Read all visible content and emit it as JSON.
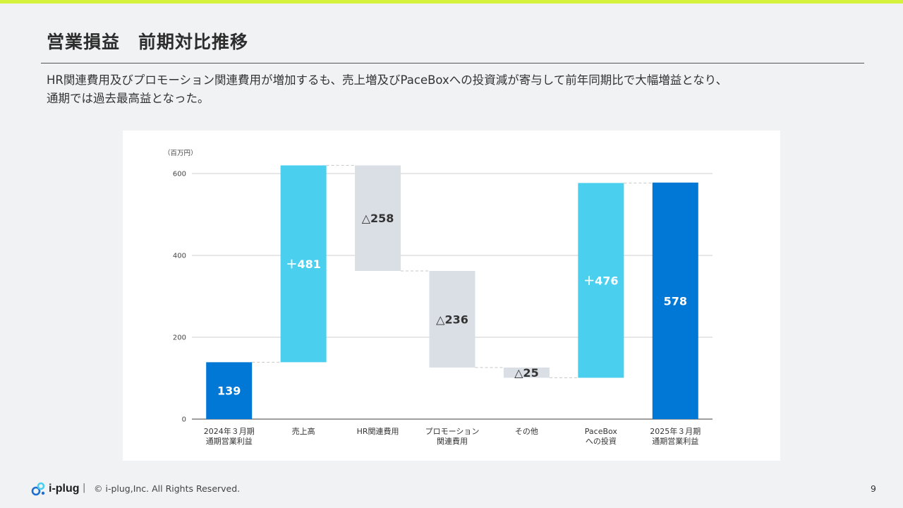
{
  "page": {
    "title": "営業損益　前期対比推移",
    "description_lines": [
      "HR関連費用及びプロモーション関連費用が増加するも、売上増及びPaceBoxへの投資減が寄与して前年同期比で大幅増益となり、",
      "通期では過去最高益となった。"
    ],
    "footer": {
      "logo_text": "i-plug",
      "separator": "|",
      "copyright": "© i-plug,Inc. All Rights Reserved.",
      "page_number": "9"
    }
  },
  "colors": {
    "total": "#0278d6",
    "increase": "#4bcfee",
    "decrease": "#dadfe6",
    "accent_bar": "#d7f23c"
  },
  "chart_data": {
    "type": "waterfall",
    "unit": "（百万円）",
    "ylim": [
      0,
      600
    ],
    "yticks": [
      0,
      200,
      400,
      600
    ],
    "grid": true,
    "steps": [
      {
        "category": [
          "2024年３月期",
          "通期営業利益"
        ],
        "kind": "total",
        "value": 139,
        "label": "139"
      },
      {
        "category": [
          "売上高"
        ],
        "kind": "increase",
        "value": 481,
        "label": "＋481"
      },
      {
        "category": [
          "HR関連費用"
        ],
        "kind": "decrease",
        "value": -258,
        "label": "△258"
      },
      {
        "category": [
          "プロモーション",
          "関連費用"
        ],
        "kind": "decrease",
        "value": -236,
        "label": "△236"
      },
      {
        "category": [
          "その他"
        ],
        "kind": "decrease",
        "value": -25,
        "label": "△25"
      },
      {
        "category": [
          "PaceBox",
          "への投資"
        ],
        "kind": "increase",
        "value": 476,
        "label": "＋476"
      },
      {
        "category": [
          "2025年３月期",
          "通期営業利益"
        ],
        "kind": "total",
        "value": 578,
        "label": "578"
      }
    ]
  }
}
